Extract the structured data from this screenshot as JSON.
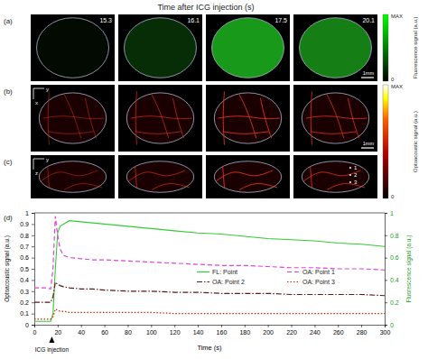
{
  "title": "Time after ICG injection (s)",
  "panels": {
    "labels": [
      "(a)",
      "(b)",
      "(c)",
      "(d)"
    ],
    "times": [
      15.3,
      16.1,
      17.5,
      20.1
    ],
    "scale_bar": "1mm",
    "axes_b": [
      "y",
      "x"
    ],
    "axes_c": [
      "y",
      "z"
    ],
    "points": [
      "1",
      "2",
      "3"
    ],
    "colorbar_a": {
      "label": "Fluorescence signal (a.u.)",
      "range": [
        0,
        1
      ],
      "ticks": [
        0,
        {
          "value": 1,
          "label": "MAX"
        }
      ]
    },
    "colorbar_bc": {
      "label": "Optoacoustic signal (a.u.)",
      "range": [
        0,
        1
      ],
      "ticks": [
        0,
        {
          "value": 1,
          "label": "MAX"
        }
      ]
    }
  },
  "chart_data": {
    "type": "line",
    "xlabel": "Time (s)",
    "ylabel": "Optoacoustic signal (a.u.)",
    "y2label": "Fluorescence signal (a.u.)",
    "x": [
      0,
      5,
      10,
      14,
      16,
      18,
      20,
      22,
      25,
      30,
      40,
      50,
      60,
      80,
      100,
      120,
      140,
      160,
      180,
      200,
      220,
      240,
      260,
      280,
      300
    ],
    "series": [
      {
        "name": "FL: Point",
        "color": "#33cc33",
        "line_style": "solid",
        "axis": "y2",
        "values": [
          0.03,
          0.03,
          0.03,
          0.03,
          0.1,
          0.5,
          0.82,
          0.88,
          0.9,
          0.93,
          0.92,
          0.91,
          0.9,
          0.88,
          0.86,
          0.84,
          0.82,
          0.81,
          0.79,
          0.77,
          0.76,
          0.75,
          0.73,
          0.72,
          0.7
        ]
      },
      {
        "name": "OA: Point 1",
        "color": "#e040e0",
        "line_style": "dashed",
        "values": [
          0.33,
          0.33,
          0.33,
          0.32,
          0.5,
          0.97,
          0.8,
          0.68,
          0.62,
          0.6,
          0.59,
          0.58,
          0.58,
          0.57,
          0.56,
          0.55,
          0.54,
          0.53,
          0.53,
          0.52,
          0.51,
          0.51,
          0.5,
          0.5,
          0.49
        ]
      },
      {
        "name": "OA: Point 2",
        "color": "#5a1a1a",
        "line_style": "dashdot",
        "values": [
          0.2,
          0.2,
          0.2,
          0.2,
          0.25,
          0.38,
          0.36,
          0.35,
          0.34,
          0.33,
          0.32,
          0.32,
          0.31,
          0.3,
          0.3,
          0.29,
          0.29,
          0.28,
          0.28,
          0.28,
          0.27,
          0.27,
          0.27,
          0.27,
          0.26
        ]
      },
      {
        "name": "OA: Point 3",
        "color": "#cc2200",
        "line_style": "dotted",
        "values": [
          0.05,
          0.05,
          0.05,
          0.05,
          0.07,
          0.14,
          0.13,
          0.12,
          0.12,
          0.11,
          0.11,
          0.11,
          0.11,
          0.11,
          0.11,
          0.1,
          0.1,
          0.1,
          0.1,
          0.1,
          0.1,
          0.1,
          0.1,
          0.1,
          0.1
        ]
      }
    ],
    "xlim": [
      0,
      300
    ],
    "xticks": [
      0,
      20,
      40,
      60,
      80,
      100,
      120,
      140,
      160,
      180,
      200,
      220,
      240,
      260,
      280,
      300
    ],
    "ylim": [
      0,
      1
    ],
    "yticks": [
      0,
      0.1,
      0.2,
      0.3,
      0.4,
      0.5,
      0.6,
      0.7,
      0.8,
      0.9,
      1
    ],
    "y2lim": [
      0,
      1
    ],
    "y2ticks": [
      0,
      0.2,
      0.4,
      0.6,
      0.8,
      1
    ],
    "legend": "right",
    "annotations": [
      {
        "text": "ICG injection",
        "x": 15
      }
    ]
  }
}
